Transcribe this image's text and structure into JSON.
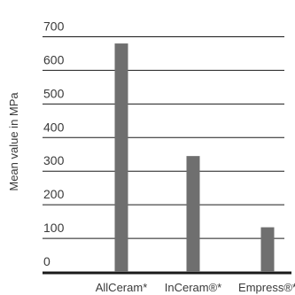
{
  "chart_data": {
    "type": "bar",
    "categories": [
      "AllCeram*",
      "InCeram®*",
      "Empress®*"
    ],
    "values": [
      680,
      345,
      133
    ],
    "title": "",
    "xlabel": "",
    "ylabel": "Mean value in MPa",
    "ylim": [
      0,
      700
    ],
    "yticks": [
      0,
      100,
      200,
      300,
      400,
      500,
      600,
      700
    ],
    "grid": true,
    "colors": {
      "bar": "#6f6f6f",
      "grid": "#1a1a1a",
      "baseline": "#1a1a1a",
      "text": "#3a3a3a"
    }
  }
}
